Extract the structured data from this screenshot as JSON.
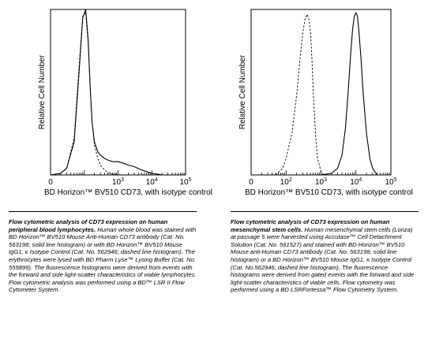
{
  "chart_data": [
    {
      "type": "area",
      "ylabel": "Relative Cell Number",
      "xlabel": "BD Horizon™ BV510 CD73, with isotype control",
      "x_scale": "log",
      "xlim": [
        10,
        100000
      ],
      "ylim": [
        0,
        100
      ],
      "tick_labels": [
        {
          "base": "0",
          "exp": "",
          "value": 0
        },
        {
          "base": "10",
          "exp": "3",
          "value": 1000
        },
        {
          "base": "10",
          "exp": "4",
          "value": 10000
        },
        {
          "base": "10",
          "exp": "5",
          "value": 100000
        }
      ],
      "series": [
        {
          "line_style": "solid",
          "color": "#000000",
          "x": [
            10,
            20,
            30,
            50,
            70,
            90,
            110,
            130,
            150,
            170,
            200,
            250,
            300,
            400,
            500,
            700,
            1000,
            1500,
            2000,
            3000,
            5000,
            7000,
            10000,
            15000,
            20000
          ],
          "y": [
            0,
            1,
            4,
            20,
            62,
            95,
            100,
            82,
            52,
            32,
            20,
            14,
            12,
            10,
            9,
            8,
            8,
            7,
            6,
            5,
            3,
            2,
            1,
            0.5,
            0
          ]
        },
        {
          "line_style": "dashed",
          "color": "#000000",
          "x": [
            10,
            20,
            30,
            50,
            70,
            90,
            110,
            130,
            150,
            170,
            200,
            250,
            300,
            400,
            500,
            700,
            1000,
            1500,
            2000
          ],
          "y": [
            0,
            1,
            4,
            22,
            65,
            96,
            98,
            80,
            52,
            32,
            18,
            10,
            6,
            3,
            1.5,
            0.5,
            0.2,
            0,
            0
          ]
        }
      ]
    },
    {
      "type": "area",
      "ylabel": "Relative Cell Number",
      "xlabel": "BD Horizon™ BV510 CD73, with isotype control",
      "x_scale": "log",
      "xlim": [
        10,
        100000
      ],
      "ylim": [
        0,
        100
      ],
      "tick_labels": [
        {
          "base": "0",
          "exp": "",
          "value": 0
        },
        {
          "base": "10",
          "exp": "2",
          "value": 100
        },
        {
          "base": "10",
          "exp": "3",
          "value": 1000
        },
        {
          "base": "10",
          "exp": "4",
          "value": 10000
        },
        {
          "base": "10",
          "exp": "5",
          "value": 100000
        }
      ],
      "series": [
        {
          "line_style": "solid",
          "color": "#000000",
          "x": [
            1000,
            2000,
            3000,
            4000,
            5000,
            6000,
            7000,
            8000,
            9000,
            10000,
            11000,
            12000,
            14000,
            16000,
            20000,
            25000,
            30000,
            40000
          ],
          "y": [
            0,
            1,
            4,
            12,
            28,
            50,
            72,
            88,
            96,
            98,
            96,
            88,
            70,
            50,
            25,
            10,
            4,
            0
          ]
        },
        {
          "line_style": "dashed",
          "color": "#000000",
          "x": [
            50,
            80,
            100,
            150,
            200,
            250,
            300,
            350,
            400,
            450,
            500,
            550,
            600,
            700,
            800,
            1000,
            1200
          ],
          "y": [
            0,
            4,
            10,
            26,
            48,
            70,
            86,
            94,
            97,
            94,
            86,
            70,
            50,
            24,
            10,
            2,
            0
          ]
        }
      ]
    }
  ],
  "captions": {
    "left": {
      "title": "Flow cytometric analysis of CD73 expression on human peripheral blood lymphocytes.",
      "body": "Human whole blood was stained with BD Horizon™ BV510 Mouse Anti-Human CD73 antibody (Cat. No. 563198; solid line histogram) or with BD Horizon™ BV510 Mouse IgG1, κ Isotype Control (Cat. No. 562946; dashed line histogram). The erythrocytes were lysed with BD Pharm Lyse™ Lysing Buffer (Cat. No. 555899). The fluorescence histograms were derived from events with the forward and side light-scatter characteristics of viable lymphocytes. Flow cytometric analysis was performed using a BD™ LSR II Flow Cytometer System."
    },
    "right": {
      "title": "Flow cytometric analysis of CD73 expression on human mesenchymal stem cells.",
      "body": "Human mesenchymal stem cells (Lonza) at passage 5 were harvested using Accutase™ Cell Detachment Solution (Cat. No. 561527) and stained with BD Horizon™ BV510 Mouse anti-Human CD73 antibody (Cat. No. 563198; solid line histogram) or a BD Horizon™ BV510 Mouse IgG1, κ Isotype Control (Cat. No.562946, dashed line histogram). The fluorescence histograms were derived from gated events with the forward and side light-scatter characteristics of viable cells. Flow cytometry was performed using a BD LSRFortessa™ Flow Cytometry System."
    }
  }
}
